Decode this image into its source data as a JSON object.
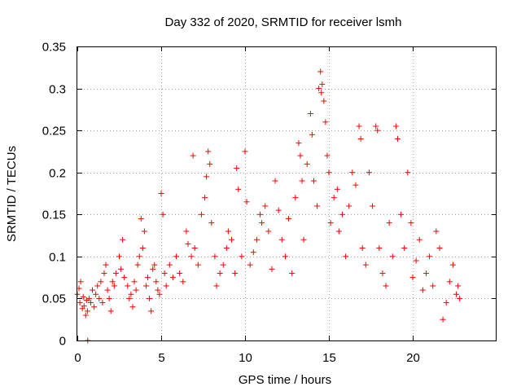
{
  "chart_data": {
    "type": "scatter",
    "title": "Day 332 of 2020, SRMTID for receiver lsmh",
    "xlabel": "GPS time / hours",
    "ylabel": "SRMTID / TECUs",
    "xlim": [
      0,
      25
    ],
    "ylim": [
      0,
      0.35
    ],
    "xticks": [
      0,
      5,
      10,
      15,
      20
    ],
    "xtick_labels": [
      "0",
      "5",
      "10",
      "15",
      "20"
    ],
    "yticks": [
      0,
      0.05,
      0.1,
      0.15,
      0.2,
      0.25,
      0.3,
      0.35
    ],
    "ytick_labels": [
      "0",
      "0.05",
      "0.1",
      "0.15",
      "0.2",
      "0.25",
      "0.3",
      "0.35"
    ],
    "grid": true,
    "marker": "+",
    "color": "#ff0000",
    "series": [
      {
        "name": "SRMTID",
        "points": [
          [
            0.0,
            0.055
          ],
          [
            0.1,
            0.062
          ],
          [
            0.15,
            0.045
          ],
          [
            0.2,
            0.07
          ],
          [
            0.3,
            0.038
          ],
          [
            0.35,
            0.052
          ],
          [
            0.4,
            0.041
          ],
          [
            0.5,
            0.03
          ],
          [
            0.55,
            0.048
          ],
          [
            0.6,
            0.035
          ],
          [
            0.62,
            0.0
          ],
          [
            0.7,
            0.05
          ],
          [
            0.8,
            0.045
          ],
          [
            0.9,
            0.06
          ],
          [
            1.0,
            0.04
          ],
          [
            1.1,
            0.055
          ],
          [
            1.2,
            0.065
          ],
          [
            1.3,
            0.05
          ],
          [
            1.4,
            0.07
          ],
          [
            1.5,
            0.045
          ],
          [
            1.6,
            0.08
          ],
          [
            1.7,
            0.09
          ],
          [
            1.8,
            0.06
          ],
          [
            1.9,
            0.05
          ],
          [
            2.0,
            0.035
          ],
          [
            2.1,
            0.07
          ],
          [
            2.2,
            0.065
          ],
          [
            2.3,
            0.08
          ],
          [
            2.5,
            0.1
          ],
          [
            2.6,
            0.085
          ],
          [
            2.7,
            0.12
          ],
          [
            2.8,
            0.075
          ],
          [
            3.0,
            0.065
          ],
          [
            3.1,
            0.05
          ],
          [
            3.2,
            0.055
          ],
          [
            3.3,
            0.04
          ],
          [
            3.4,
            0.07
          ],
          [
            3.5,
            0.06
          ],
          [
            3.6,
            0.09
          ],
          [
            3.7,
            0.1
          ],
          [
            3.8,
            0.145
          ],
          [
            3.9,
            0.11
          ],
          [
            4.0,
            0.13
          ],
          [
            4.1,
            0.065
          ],
          [
            4.2,
            0.075
          ],
          [
            4.3,
            0.05
          ],
          [
            4.4,
            0.035
          ],
          [
            4.5,
            0.085
          ],
          [
            4.6,
            0.09
          ],
          [
            4.7,
            0.07
          ],
          [
            4.8,
            0.06
          ],
          [
            4.9,
            0.055
          ],
          [
            5.0,
            0.175
          ],
          [
            5.1,
            0.15
          ],
          [
            5.2,
            0.08
          ],
          [
            5.3,
            0.065
          ],
          [
            5.5,
            0.09
          ],
          [
            5.7,
            0.075
          ],
          [
            5.9,
            0.1
          ],
          [
            6.1,
            0.08
          ],
          [
            6.3,
            0.07
          ],
          [
            6.5,
            0.13
          ],
          [
            6.6,
            0.115
          ],
          [
            6.8,
            0.1
          ],
          [
            6.9,
            0.22
          ],
          [
            7.0,
            0.11
          ],
          [
            7.2,
            0.09
          ],
          [
            7.4,
            0.15
          ],
          [
            7.6,
            0.17
          ],
          [
            7.7,
            0.195
          ],
          [
            7.8,
            0.225
          ],
          [
            7.9,
            0.21
          ],
          [
            8.0,
            0.14
          ],
          [
            8.2,
            0.1
          ],
          [
            8.3,
            0.065
          ],
          [
            8.5,
            0.08
          ],
          [
            8.7,
            0.09
          ],
          [
            8.9,
            0.11
          ],
          [
            9.0,
            0.13
          ],
          [
            9.2,
            0.12
          ],
          [
            9.4,
            0.08
          ],
          [
            9.5,
            0.205
          ],
          [
            9.6,
            0.18
          ],
          [
            9.8,
            0.1
          ],
          [
            10.0,
            0.225
          ],
          [
            10.1,
            0.165
          ],
          [
            10.3,
            0.09
          ],
          [
            10.5,
            0.105
          ],
          [
            10.7,
            0.12
          ],
          [
            10.9,
            0.15
          ],
          [
            11.0,
            0.14
          ],
          [
            11.2,
            0.16
          ],
          [
            11.4,
            0.13
          ],
          [
            11.6,
            0.085
          ],
          [
            11.8,
            0.19
          ],
          [
            12.0,
            0.155
          ],
          [
            12.2,
            0.12
          ],
          [
            12.4,
            0.1
          ],
          [
            12.6,
            0.145
          ],
          [
            12.8,
            0.08
          ],
          [
            13.0,
            0.17
          ],
          [
            13.2,
            0.235
          ],
          [
            13.3,
            0.22
          ],
          [
            13.4,
            0.19
          ],
          [
            13.5,
            0.12
          ],
          [
            13.7,
            0.21
          ],
          [
            13.9,
            0.27
          ],
          [
            14.0,
            0.245
          ],
          [
            14.1,
            0.19
          ],
          [
            14.3,
            0.16
          ],
          [
            14.4,
            0.3
          ],
          [
            14.5,
            0.32
          ],
          [
            14.55,
            0.295
          ],
          [
            14.6,
            0.305
          ],
          [
            14.7,
            0.285
          ],
          [
            14.8,
            0.26
          ],
          [
            14.9,
            0.22
          ],
          [
            15.0,
            0.2
          ],
          [
            15.1,
            0.14
          ],
          [
            15.3,
            0.17
          ],
          [
            15.5,
            0.18
          ],
          [
            15.6,
            0.13
          ],
          [
            15.8,
            0.15
          ],
          [
            16.0,
            0.1
          ],
          [
            16.2,
            0.16
          ],
          [
            16.4,
            0.2
          ],
          [
            16.6,
            0.185
          ],
          [
            16.8,
            0.255
          ],
          [
            16.9,
            0.24
          ],
          [
            17.0,
            0.11
          ],
          [
            17.2,
            0.09
          ],
          [
            17.4,
            0.2
          ],
          [
            17.6,
            0.16
          ],
          [
            17.8,
            0.255
          ],
          [
            17.9,
            0.25
          ],
          [
            18.0,
            0.11
          ],
          [
            18.2,
            0.08
          ],
          [
            18.4,
            0.065
          ],
          [
            18.6,
            0.14
          ],
          [
            18.8,
            0.1
          ],
          [
            19.0,
            0.255
          ],
          [
            19.1,
            0.24
          ],
          [
            19.3,
            0.15
          ],
          [
            19.5,
            0.11
          ],
          [
            19.7,
            0.2
          ],
          [
            19.9,
            0.14
          ],
          [
            20.0,
            0.075
          ],
          [
            20.2,
            0.095
          ],
          [
            20.4,
            0.12
          ],
          [
            20.6,
            0.06
          ],
          [
            20.8,
            0.08
          ],
          [
            21.0,
            0.1
          ],
          [
            21.2,
            0.065
          ],
          [
            21.4,
            0.13
          ],
          [
            21.6,
            0.11
          ],
          [
            21.8,
            0.025
          ],
          [
            22.0,
            0.045
          ],
          [
            22.2,
            0.07
          ],
          [
            22.4,
            0.09
          ],
          [
            22.6,
            0.055
          ],
          [
            22.7,
            0.065
          ],
          [
            22.8,
            0.05
          ]
        ]
      }
    ]
  }
}
